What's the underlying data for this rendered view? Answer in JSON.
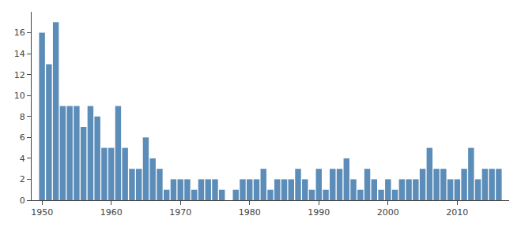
{
  "chart_data": {
    "type": "bar",
    "x": [
      1950,
      1951,
      1952,
      1953,
      1954,
      1955,
      1956,
      1957,
      1958,
      1959,
      1960,
      1961,
      1962,
      1963,
      1964,
      1965,
      1966,
      1967,
      1968,
      1969,
      1970,
      1971,
      1972,
      1973,
      1974,
      1975,
      1976,
      1977,
      1978,
      1979,
      1980,
      1981,
      1982,
      1983,
      1984,
      1985,
      1986,
      1987,
      1988,
      1989,
      1990,
      1991,
      1992,
      1993,
      1994,
      1995,
      1996,
      1997,
      1998,
      1999,
      2000,
      2001,
      2002,
      2003,
      2004,
      2005,
      2006,
      2007,
      2008,
      2009,
      2010,
      2011,
      2012,
      2013,
      2014,
      2015,
      2016
    ],
    "values": [
      16,
      13,
      17,
      9,
      9,
      9,
      7,
      9,
      8,
      5,
      5,
      9,
      5,
      3,
      3,
      6,
      4,
      3,
      1,
      2,
      2,
      2,
      1,
      2,
      2,
      2,
      1,
      0,
      1,
      2,
      2,
      2,
      3,
      1,
      2,
      2,
      2,
      3,
      2,
      1,
      3,
      1,
      3,
      3,
      4,
      2,
      1,
      3,
      2,
      1,
      2,
      1,
      2,
      2,
      2,
      3,
      5,
      3,
      3,
      2,
      2,
      3,
      5,
      2,
      3,
      3,
      3
    ],
    "color": "#5b8db8",
    "xlim": [
      1948.5,
      2017.5
    ],
    "xticks": [
      1950,
      1960,
      1970,
      1980,
      1990,
      2000,
      2010
    ],
    "ylim": [
      0,
      18
    ],
    "yticks": [
      0,
      2,
      4,
      6,
      8,
      10,
      12,
      14,
      16
    ],
    "grid": false
  }
}
